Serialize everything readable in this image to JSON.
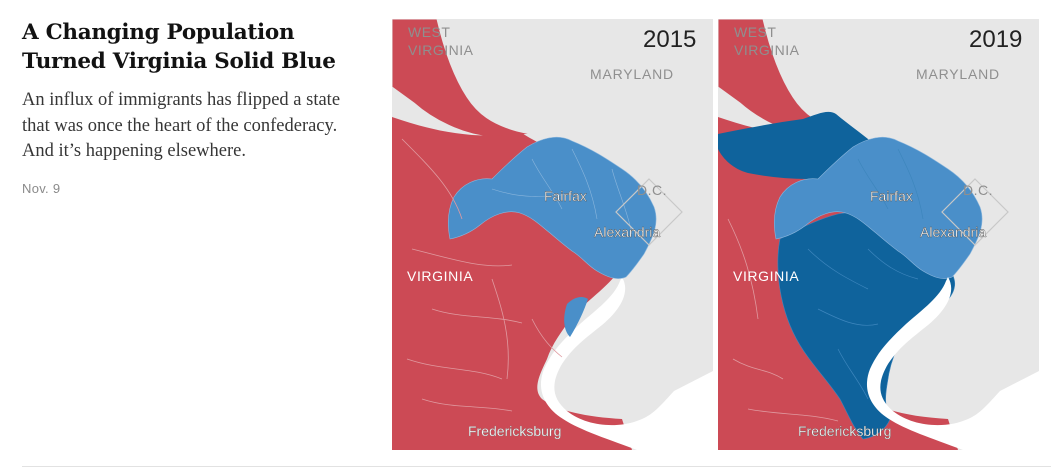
{
  "headline": "A Changing Population Turned Virginia Solid Blue",
  "summary": "An influx of immigrants has flipped a state that was once the heart of the confederacy. And it’s happening elsewhere.",
  "date": "Nov. 9",
  "colors": {
    "republican_red": "#cc4a55",
    "democrat_light_blue": "#4a8fc9",
    "democrat_dark_blue": "#0f639c",
    "land_gray": "#e7e7e7",
    "water_white": "#ffffff"
  },
  "maps": [
    {
      "year": "2015",
      "labels": {
        "west_virginia": [
          "WEST",
          "VIRGINIA"
        ],
        "maryland": "MARYLAND",
        "dc": "D.C.",
        "virginia": "VIRGINIA",
        "fairfax": "Fairfax",
        "alexandria": "Alexandria",
        "fredericksburg": "Fredericksburg"
      }
    },
    {
      "year": "2019",
      "labels": {
        "west_virginia": [
          "WEST",
          "VIRGINIA"
        ],
        "maryland": "MARYLAND",
        "dc": "D.C.",
        "virginia": "VIRGINIA",
        "fairfax": "Fairfax",
        "alexandria": "Alexandria",
        "fredericksburg": "Fredericksburg"
      }
    }
  ]
}
